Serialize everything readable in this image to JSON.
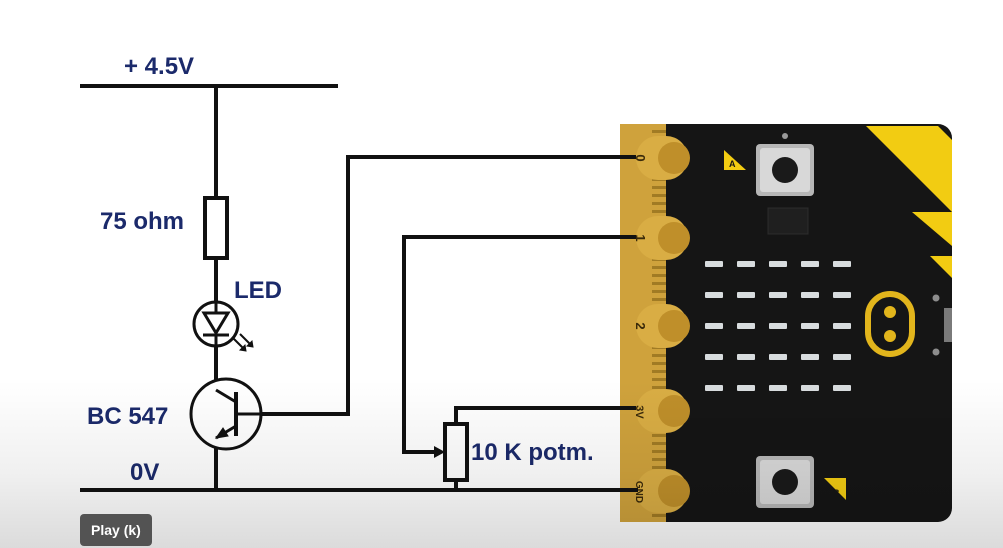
{
  "video": {
    "play_tooltip": "Play (k)"
  },
  "circuit": {
    "supply_label": "+ 4.5V",
    "ground_label": "0V",
    "resistor_label": "75 ohm",
    "led_label": "LED",
    "transistor_label": "BC 547",
    "potentiometer_label": "10 K potm."
  },
  "board": {
    "pins": [
      "0",
      "1",
      "2",
      "3V",
      "GND"
    ],
    "button_a_label": "A",
    "button_b_label": "B"
  },
  "colors": {
    "wire": "#111111",
    "label_text": "#1b2a6b",
    "board": "#151515",
    "gold": "#d4a93a",
    "yellow_accent": "#f2cc12",
    "led_grid": "#d8dcde"
  }
}
